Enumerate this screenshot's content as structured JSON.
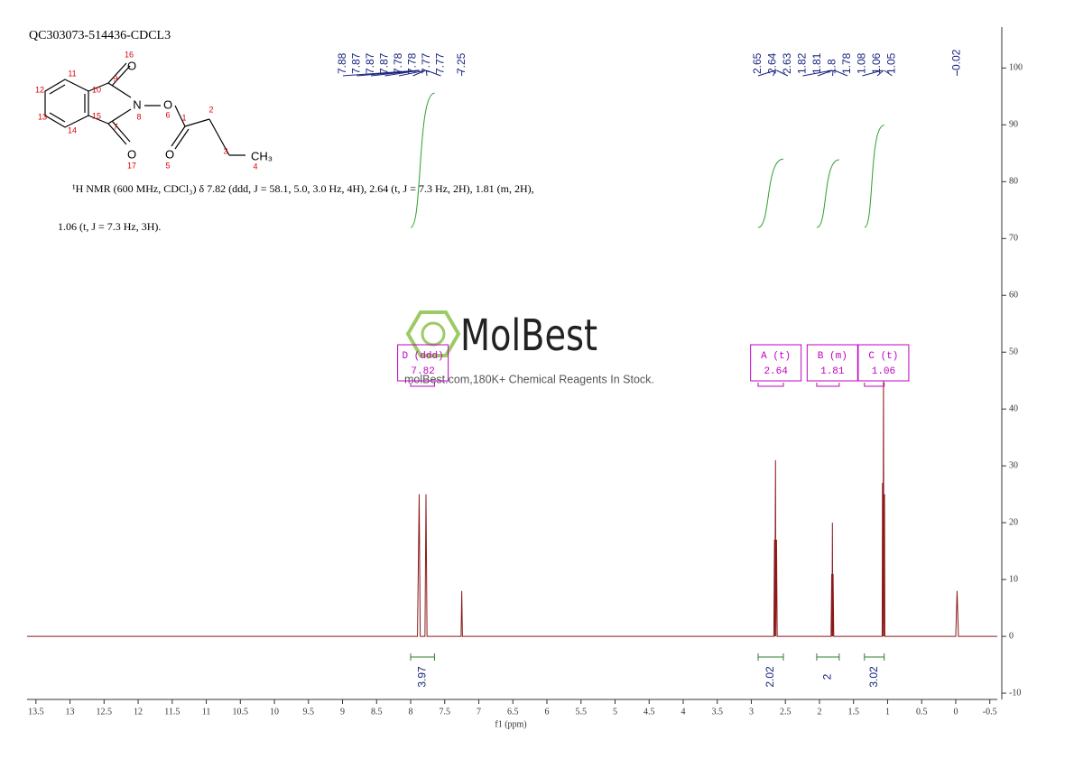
{
  "chart_data": {
    "type": "line",
    "title": "QC303073-514436-CDCL3",
    "description": [
      "¹H NMR (600 MHz, CDCl₃) δ 7.82 (ddd, J = 58.1, 5.0, 3.0 Hz, 4H), 2.64 (t, J = 7.3 Hz, 2H), 1.81 (m, 2H),",
      "1.06 (t, J = 7.3 Hz, 3H)."
    ],
    "watermark": "MolBest",
    "watermark_subtitle": "molBest.com,180K+ Chemical Reagents In Stock.",
    "x_label": "f1 (ppm)",
    "color": "#8b1a1a",
    "x": [
      13.63,
      7.9,
      7.875,
      7.86,
      7.79,
      7.775,
      7.76,
      7.26,
      7.25,
      7.24,
      2.67,
      2.66,
      2.655,
      2.645,
      2.64,
      2.63,
      2.62,
      1.83,
      1.82,
      1.815,
      1.81,
      1.805,
      1.8,
      1.79,
      1.08,
      1.075,
      1.07,
      1.06,
      1.055,
      1.045,
      1.04,
      0.0,
      -0.02,
      -0.04,
      -0.61
    ],
    "values": [
      0,
      0,
      25,
      0,
      0,
      25,
      0,
      0,
      8,
      0,
      0,
      17,
      0,
      31,
      0,
      17,
      0,
      0,
      11,
      0,
      20,
      0,
      11,
      0,
      0,
      27,
      0,
      45,
      0,
      25,
      0,
      0,
      8,
      0,
      0
    ],
    "xlim": [
      13.63,
      -0.61
    ],
    "xticks": [
      13.5,
      13.0,
      12.5,
      12.0,
      11.5,
      11.0,
      10.5,
      10.0,
      9.5,
      9.0,
      8.5,
      8.0,
      7.5,
      7.0,
      6.5,
      6.0,
      5.5,
      5.0,
      4.5,
      4.0,
      3.5,
      3.0,
      2.5,
      2.0,
      1.5,
      1.0,
      0.5,
      0.0,
      -0.5
    ],
    "ylim": [
      -11.1,
      107.2
    ],
    "yticks": [
      -10,
      0,
      10,
      20,
      30,
      40,
      50,
      60,
      70,
      80,
      90,
      100
    ],
    "peak_labels": [
      7.88,
      7.87,
      7.87,
      7.87,
      7.78,
      7.78,
      7.77,
      7.77,
      7.25,
      2.65,
      2.64,
      2.63,
      1.82,
      1.81,
      1.8,
      1.78,
      1.08,
      1.06,
      1.05,
      -0.02
    ],
    "multiplets": [
      {
        "label": "D (ddd)",
        "shift": 7.82,
        "range": [
          8.0,
          7.65
        ],
        "integral": 3.97
      },
      {
        "label": "A (t)",
        "shift": 2.64,
        "range": [
          2.9,
          2.53
        ],
        "integral": 2.02
      },
      {
        "label": "B (m)",
        "shift": 1.81,
        "range": [
          2.04,
          1.71
        ],
        "integral": 2.0
      },
      {
        "label": "C (t)",
        "shift": 1.06,
        "range": [
          1.34,
          1.05
        ],
        "integral": 3.02
      }
    ]
  },
  "structure": {
    "numbers": [
      "16",
      "11",
      "12",
      "10",
      "9",
      "8",
      "6",
      "13",
      "15",
      "7",
      "14",
      "1",
      "2",
      "3",
      "4",
      "17",
      "5"
    ],
    "symbols": [
      "O",
      "N",
      "O",
      "O",
      "O",
      "CH₃"
    ]
  }
}
